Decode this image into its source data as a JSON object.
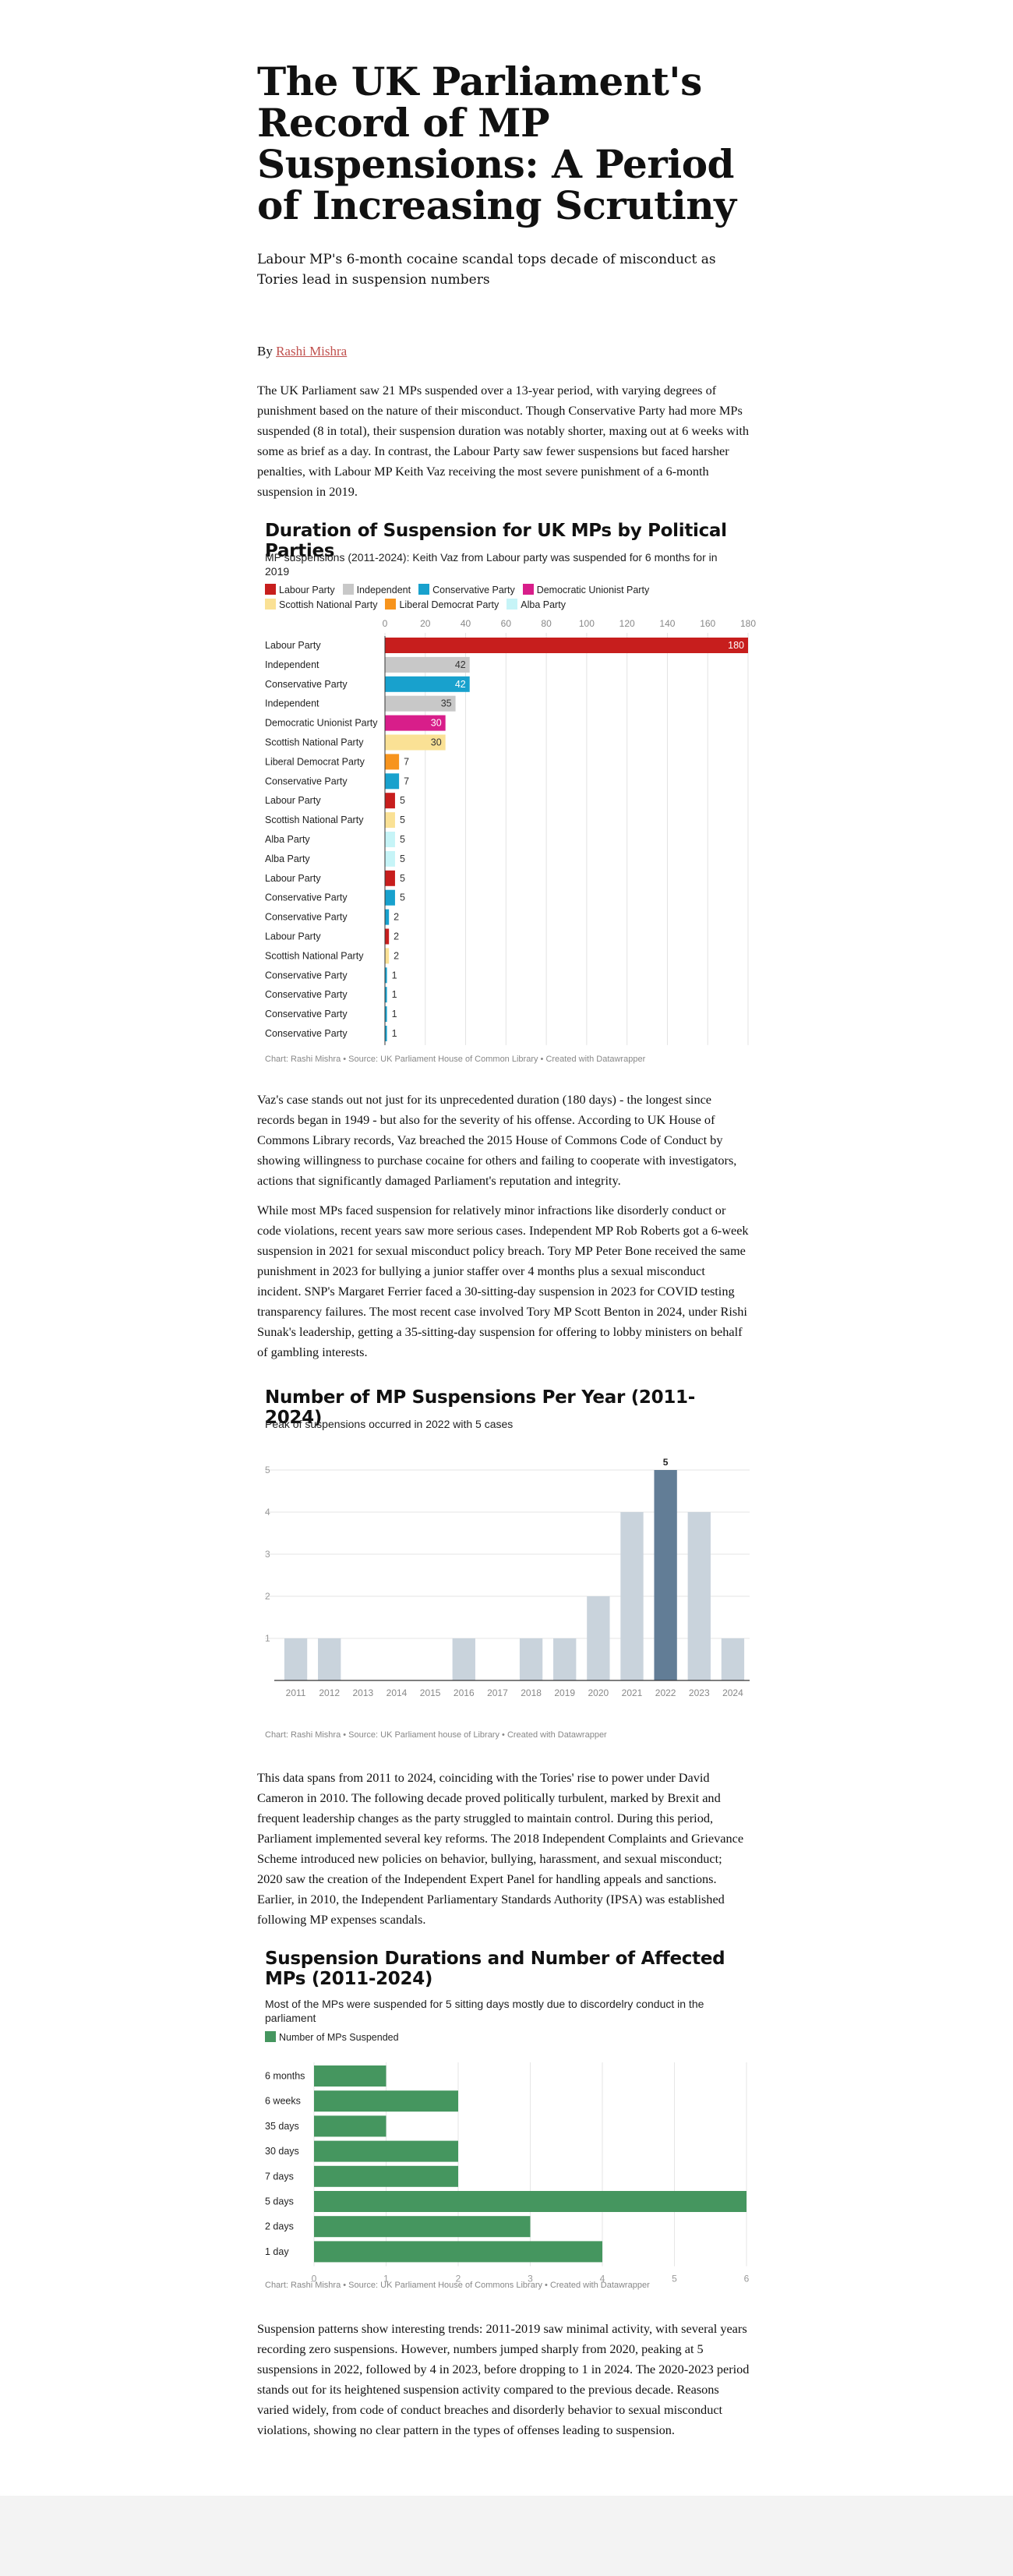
{
  "article": {
    "title": "The UK Parliament's Record of MP Suspensions: A Period of Increasing Scrutiny",
    "subtitle": "Labour MP's 6-month cocaine scandal tops decade of misconduct as Tories lead in suspension numbers",
    "byline_prefix": "By",
    "author": "Rashi Mishra",
    "paragraphs": [
      "The UK Parliament saw 21 MPs suspended over a 13-year period, with varying degrees of punishment based on the nature of their misconduct. Though Conservative Party had more MPs suspended (8 in total), their suspension duration was notably shorter, maxing out at 6 weeks with some as brief as a day. In contrast, the Labour Party saw fewer suspensions but faced harsher penalties, with Labour MP Keith Vaz receiving the most severe punishment of a 6-month suspension in 2019.",
      "Vaz's case stands out not just for its unprecedented duration (180 days) - the longest since records began in 1949 - but also for the severity of his offense. According to UK House of Commons Library records, Vaz breached the 2015 House of Commons Code of Conduct by showing willingness to purchase cocaine for others and failing to cooperate with investigators, actions that significantly damaged Parliament's reputation and integrity.",
      "While most MPs faced suspension for relatively minor infractions like disorderly conduct or code violations, recent years saw more serious cases. Independent MP Rob Roberts got a 6-week suspension in 2021 for sexual misconduct policy breach. Tory MP Peter Bone received the same punishment in 2023 for bullying a junior staffer over 4 months plus a sexual misconduct incident. SNP's Margaret Ferrier faced a 30-sitting-day suspension in 2023 for COVID testing transparency failures. The most recent case involved Tory MP Scott Benton in 2024, under Rishi Sunak's leadership, getting a 35-sitting-day suspension for offering to lobby ministers on behalf of gambling interests.",
      "This data spans from 2011 to 2024, coinciding with the Tories' rise to power under David Cameron in 2010. The following decade proved politically turbulent, marked by Brexit and frequent leadership changes as the party struggled to maintain control. During this period, Parliament implemented several key reforms. The 2018 Independent Complaints and Grievance Scheme introduced new policies on behavior, bullying, harassment, and sexual misconduct; 2020 saw the creation of the Independent Expert Panel for handling appeals and sanctions. Earlier, in 2010, the Independent Parliamentary Standards Authority (IPSA) was established following MP expenses scandals.",
      "Suspension patterns show interesting trends: 2011-2019 saw minimal activity, with several years recording zero suspensions. However, numbers jumped sharply from 2020, peaking at 5 suspensions in 2022, followed by 4 in 2023, before dropping to 1 in 2024. The 2020-2023 period stands out for its heightened suspension activity compared to the previous decade. Reasons varied widely, from code of conduct breaches and disorderly behavior to sexual misconduct violations, showing no clear pattern in the types of offenses leading to suspension."
    ]
  },
  "chart_data": [
    {
      "type": "bar",
      "orientation": "horizontal",
      "title": "Duration of Suspension for UK MPs by Political Parties",
      "subtitle": "MP suspensions (2011-2024): Keith Vaz from Labour party was suspended for 6 months for in 2019",
      "legend": [
        {
          "name": "Labour Party",
          "color": "#c71e1d"
        },
        {
          "name": "Independent",
          "color": "#c8c8c8"
        },
        {
          "name": "Conservative Party",
          "color": "#18a1cd"
        },
        {
          "name": "Democratic Unionist Party",
          "color": "#d81e8a"
        },
        {
          "name": "Scottish National Party",
          "color": "#fae195"
        },
        {
          "name": "Liberal Democrat Party",
          "color": "#f7941d"
        },
        {
          "name": "Alba Party",
          "color": "#c6f4f7"
        }
      ],
      "x_ticks": [
        0,
        20,
        40,
        60,
        80,
        100,
        120,
        140,
        160,
        180
      ],
      "xlim": [
        0,
        180
      ],
      "grid": true,
      "rows": [
        {
          "label": "Labour Party",
          "value": 180,
          "party": "Labour Party"
        },
        {
          "label": "Independent",
          "value": 42,
          "party": "Independent"
        },
        {
          "label": "Conservative Party",
          "value": 42,
          "party": "Conservative Party"
        },
        {
          "label": "Independent",
          "value": 35,
          "party": "Independent"
        },
        {
          "label": "Democratic Unionist Party",
          "value": 30,
          "party": "Democratic Unionist Party"
        },
        {
          "label": "Scottish National Party",
          "value": 30,
          "party": "Scottish National Party"
        },
        {
          "label": "Liberal Democrat Party",
          "value": 7,
          "party": "Liberal Democrat Party"
        },
        {
          "label": "Conservative Party",
          "value": 7,
          "party": "Conservative Party"
        },
        {
          "label": "Labour Party",
          "value": 5,
          "party": "Labour Party"
        },
        {
          "label": "Scottish National Party",
          "value": 5,
          "party": "Scottish National Party"
        },
        {
          "label": "Alba Party",
          "value": 5,
          "party": "Alba Party"
        },
        {
          "label": "Alba Party",
          "value": 5,
          "party": "Alba Party"
        },
        {
          "label": "Labour Party",
          "value": 5,
          "party": "Labour Party"
        },
        {
          "label": "Conservative Party",
          "value": 5,
          "party": "Conservative Party"
        },
        {
          "label": "Conservative Party",
          "value": 2,
          "party": "Conservative Party"
        },
        {
          "label": "Labour Party",
          "value": 2,
          "party": "Labour Party"
        },
        {
          "label": "Scottish National Party",
          "value": 2,
          "party": "Scottish National Party"
        },
        {
          "label": "Conservative Party",
          "value": 1,
          "party": "Conservative Party"
        },
        {
          "label": "Conservative Party",
          "value": 1,
          "party": "Conservative Party"
        },
        {
          "label": "Conservative Party",
          "value": 1,
          "party": "Conservative Party"
        },
        {
          "label": "Conservative Party",
          "value": 1,
          "party": "Conservative Party"
        }
      ],
      "notes": "Chart: Rashi Mishra  • Source: UK Parliament House of Common Library • Created with Datawrapper"
    },
    {
      "type": "bar",
      "orientation": "vertical",
      "title": "Number of MP Suspensions Per Year (2011-2024)",
      "subtitle": "Peak of suspensions occurred in 2022 with 5 cases",
      "categories": [
        "2011",
        "2012",
        "2013",
        "2014",
        "2015",
        "2016",
        "2017",
        "2018",
        "2019",
        "2020",
        "2021",
        "2022",
        "2023",
        "2024"
      ],
      "values": [
        1,
        1,
        0,
        0,
        0,
        1,
        0,
        1,
        1,
        2,
        4,
        5,
        4,
        1
      ],
      "highlight": "2022",
      "highlight_label": "5",
      "y_ticks": [
        1,
        2,
        3,
        4,
        5
      ],
      "ylim": [
        0,
        5
      ],
      "colors": {
        "base": "#c9d3dc",
        "highlight": "#627d96"
      },
      "grid": true,
      "notes": "Chart: Rashi Mishra • Source: UK Parliament house of Library • Created with Datawrapper"
    },
    {
      "type": "bar",
      "orientation": "horizontal",
      "title": "Suspension Durations and Number of Affected MPs (2011-2024)",
      "subtitle": "Most of the MPs were suspended for 5 sitting days mostly due to discordelry conduct in the parliament",
      "legend": [
        {
          "name": "Number of MPs Suspended",
          "color": "#45965f"
        }
      ],
      "categories": [
        "6 months",
        "6 weeks",
        "35 days",
        "30 days",
        "7 days",
        "5 days",
        "2 days",
        "1 day"
      ],
      "values": [
        1,
        2,
        1,
        2,
        2,
        6,
        3,
        4
      ],
      "x_ticks": [
        0,
        1,
        2,
        3,
        4,
        5,
        6
      ],
      "xlim": [
        0,
        6
      ],
      "grid": true,
      "notes": "Chart: Rashi Mishra • Source: UK Parliament House of Commons Library • Created with Datawrapper"
    }
  ]
}
